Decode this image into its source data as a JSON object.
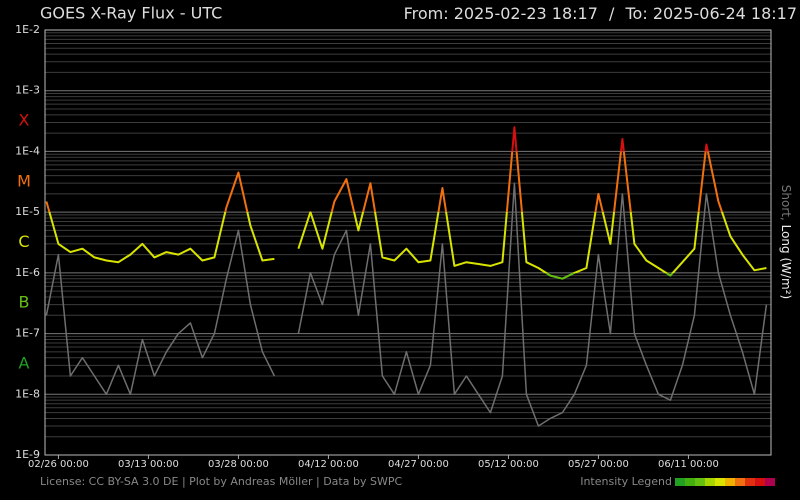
{
  "chart_data": {
    "type": "line",
    "title": "GOES X-Ray Flux - UTC",
    "from_label": "From:",
    "to_label": "To:",
    "range_separator": "/",
    "xlim": [
      "2025-02-23 18:17",
      "2025-06-24 18:17"
    ],
    "xticks": [
      "02/26 00:00",
      "03/13 00:00",
      "03/28 00:00",
      "04/12 00:00",
      "04/27 00:00",
      "05/12 00:00",
      "05/27 00:00",
      "06/11 00:00"
    ],
    "log_scale": true,
    "grid": true,
    "ylim": [
      1e-09,
      0.01
    ],
    "yticks": [
      {
        "value": 1e-09,
        "label": "1E-9"
      },
      {
        "value": 1e-08,
        "label": "1E-8"
      },
      {
        "value": 1e-07,
        "label": "1E-7"
      },
      {
        "value": 1e-06,
        "label": "1E-6"
      },
      {
        "value": 1e-05,
        "label": "1E-5"
      },
      {
        "value": 0.0001,
        "label": "1E-4"
      },
      {
        "value": 0.001,
        "label": "1E-3"
      },
      {
        "value": 0.01,
        "label": "1E-2"
      }
    ],
    "ylabel_unit": "(W/m²)",
    "series_separator": ",",
    "classes": [
      {
        "label": "A",
        "min": 1e-08,
        "max": 1e-07,
        "color": "#22a022"
      },
      {
        "label": "B",
        "min": 1e-07,
        "max": 1e-06,
        "color": "#66c010"
      },
      {
        "label": "C",
        "min": 1e-06,
        "max": 1e-05,
        "color": "#d8e400"
      },
      {
        "label": "M",
        "min": 1e-05,
        "max": 0.0001,
        "color": "#f07010"
      },
      {
        "label": "X",
        "min": 0.0001,
        "max": 0.001,
        "color": "#d41010"
      }
    ],
    "x": [
      "02/24 00:00",
      "02/26 00:00",
      "02/28 00:00",
      "03/02 00:00",
      "03/04 00:00",
      "03/06 00:00",
      "03/08 00:00",
      "03/10 00:00",
      "03/12 00:00",
      "03/14 00:00",
      "03/16 00:00",
      "03/18 00:00",
      "03/20 00:00",
      "03/22 00:00",
      "03/24 00:00",
      "03/26 00:00",
      "03/28 00:00",
      "03/30 00:00",
      "04/01 00:00",
      "04/03 00:00",
      "04/05 00:00",
      "04/07 00:00",
      "04/09 00:00",
      "04/11 00:00",
      "04/13 00:00",
      "04/15 00:00",
      "04/17 00:00",
      "04/19 00:00",
      "04/21 00:00",
      "04/23 00:00",
      "04/25 00:00",
      "04/27 00:00",
      "04/29 00:00",
      "05/01 00:00",
      "05/03 00:00",
      "05/05 00:00",
      "05/07 00:00",
      "05/09 00:00",
      "05/11 00:00",
      "05/13 00:00",
      "05/15 00:00",
      "05/17 00:00",
      "05/19 00:00",
      "05/21 00:00",
      "05/23 00:00",
      "05/25 00:00",
      "05/27 00:00",
      "05/29 00:00",
      "05/31 00:00",
      "06/02 00:00",
      "06/04 00:00",
      "06/06 00:00",
      "06/08 00:00",
      "06/10 00:00",
      "06/12 00:00",
      "06/14 00:00",
      "06/16 00:00",
      "06/18 00:00",
      "06/20 00:00",
      "06/22 00:00",
      "06/24 00:00"
    ],
    "series": [
      {
        "name": "Short",
        "color": "#6e6e6e",
        "values": [
          2e-07,
          2e-06,
          2e-08,
          4e-08,
          2e-08,
          1e-08,
          3e-08,
          1e-08,
          8e-08,
          2e-08,
          5e-08,
          1e-07,
          1.5e-07,
          4e-08,
          1e-07,
          8e-07,
          5e-06,
          3e-07,
          5e-08,
          2e-08,
          null,
          1e-07,
          1e-06,
          3e-07,
          2e-06,
          5e-06,
          2e-07,
          3e-06,
          2e-08,
          1e-08,
          5e-08,
          1e-08,
          3e-08,
          3e-06,
          1e-08,
          2e-08,
          1e-08,
          5e-09,
          2e-08,
          3e-05,
          1e-08,
          3e-09,
          4e-09,
          5e-09,
          1e-08,
          3e-08,
          2e-06,
          1e-07,
          2e-05,
          1e-07,
          3e-08,
          1e-08,
          8e-09,
          3e-08,
          2e-07,
          2e-05,
          1e-06,
          2e-07,
          5e-08,
          1e-08,
          3e-07
        ]
      },
      {
        "name": "Long",
        "color": "#d8e400",
        "values": [
          1.5e-05,
          3e-06,
          2.2e-06,
          2.5e-06,
          1.8e-06,
          1.6e-06,
          1.5e-06,
          2e-06,
          3e-06,
          1.8e-06,
          2.2e-06,
          2e-06,
          2.5e-06,
          1.6e-06,
          1.8e-06,
          1.2e-05,
          4.5e-05,
          6e-06,
          1.6e-06,
          1.7e-06,
          null,
          2.5e-06,
          1e-05,
          2.5e-06,
          1.5e-05,
          3.5e-05,
          5e-06,
          3e-05,
          1.8e-06,
          1.6e-06,
          2.5e-06,
          1.5e-06,
          1.6e-06,
          2.5e-05,
          1.3e-06,
          1.5e-06,
          1.4e-06,
          1.3e-06,
          1.5e-06,
          0.00025,
          1.5e-06,
          1.2e-06,
          9e-07,
          8e-07,
          1e-06,
          1.2e-06,
          2e-05,
          3e-06,
          0.00016,
          3e-06,
          1.6e-06,
          1.2e-06,
          9e-07,
          1.5e-06,
          2.5e-06,
          0.00013,
          1.5e-05,
          4e-06,
          2e-06,
          1.1e-06,
          1.2e-06
        ]
      }
    ],
    "footer": "License: CC BY-SA 3.0 DE | Plot by Andreas Möller | Data by SWPC",
    "intensity_legend": {
      "label": "Intensity Legend",
      "colors": [
        "#22a022",
        "#44b010",
        "#66c010",
        "#a8d400",
        "#d8e400",
        "#f0b000",
        "#f07010",
        "#e03010",
        "#d41010",
        "#b00050"
      ]
    }
  }
}
